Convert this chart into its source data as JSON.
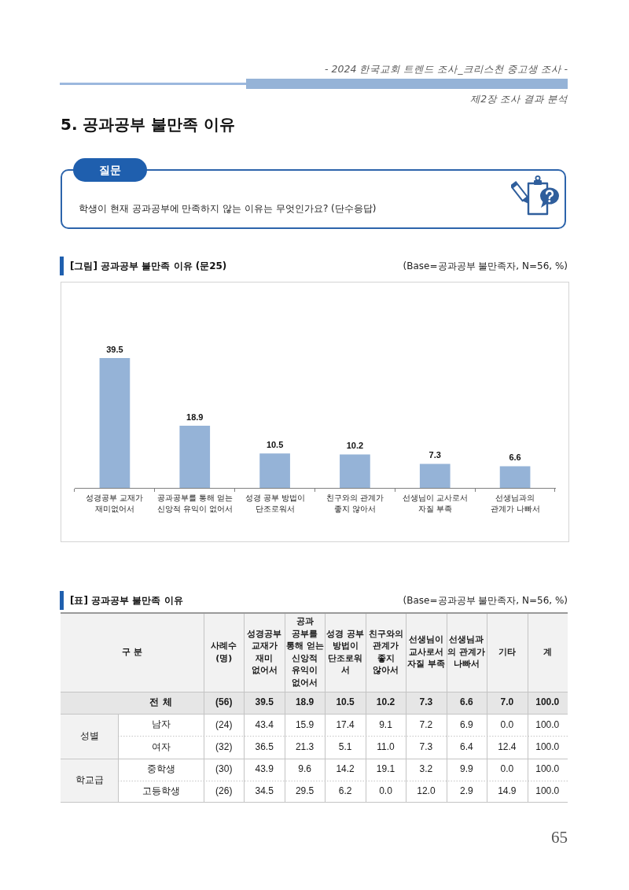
{
  "chart_data": [
    {
      "type": "other",
      "title": "5. 공과공부 불만족 이유",
      "annotations": [
        "- 2024 한국교회 트렌드 조사_크리스천 중고생 조사 -",
        "제2장 조사 결과 분석",
        "질문",
        "학생이 현재 공과공부에 만족하지 않는 이유는 무엇인가요? (단수응답)",
        "65"
      ]
    },
    {
      "type": "bar",
      "title": "[그림] 공과공부 불만족 이유 (문25)",
      "subtitle": "(Base=공과공부 불만족자, N=56, %)",
      "categories": [
        "성경공부 교재가 재미없어서",
        "공과공부를 통해 얻는 신앙적 유익이 없어서",
        "성경 공부 방법이 단조로워서",
        "친구와의 관계가 좋지 않아서",
        "선생님이 교사로서 자질 부족",
        "선생님과의 관계가 나빠서"
      ],
      "values": [
        39.5,
        18.9,
        10.5,
        10.2,
        7.3,
        6.6
      ],
      "color": "#95b3d7",
      "data_labels": true
    },
    {
      "type": "heatmap",
      "title": "[표] 공과공부 불만족 이유",
      "subtitle": "(Base=공과공부 불만족자, N=56, %)",
      "ylabel": "구 분",
      "categories": [
        "사례수 (명)",
        "성경공부 교재가 재미 없어서",
        "공과 공부를 통해 얻는 신앙적 유익이 없어서",
        "성경 공부 방법이 단조로워서",
        "친구와의 관계가 좋지 않아서",
        "선생님이 교사로서 자질 부족",
        "선생님과의 관계가 나빠서",
        "기타",
        "계"
      ],
      "y_categories": [
        "전 체",
        "남자",
        "여자",
        "중학생",
        "고등학생"
      ],
      "cells": [
        [
          56,
          39.5,
          18.9,
          10.5,
          10.2,
          7.3,
          6.6,
          7.0,
          100.0
        ],
        [
          24,
          43.4,
          15.9,
          17.4,
          9.1,
          7.2,
          6.9,
          0.0,
          100.0
        ],
        [
          32,
          36.5,
          21.3,
          5.1,
          11.0,
          7.3,
          6.4,
          12.4,
          100.0
        ],
        [
          30,
          43.9,
          9.6,
          14.2,
          19.1,
          3.2,
          9.9,
          0.0,
          100.0
        ],
        [
          26,
          34.5,
          29.5,
          6.2,
          0.0,
          12.0,
          2.9,
          14.9,
          100.0
        ]
      ],
      "cell_labels": [
        [
          "(56)",
          "39.5",
          "18.9",
          "10.5",
          "10.2",
          "7.3",
          "6.6",
          "7.0",
          "100.0"
        ],
        [
          "(24)",
          "43.4",
          "15.9",
          "17.4",
          "9.1",
          "7.2",
          "6.9",
          "0.0",
          "100.0"
        ],
        [
          "(32)",
          "36.5",
          "21.3",
          "5.1",
          "11.0",
          "7.3",
          "6.4",
          "12.4",
          "100.0"
        ],
        [
          "(30)",
          "43.9",
          "9.6",
          "14.2",
          "19.1",
          "3.2",
          "9.9",
          "0.0",
          "100.0"
        ],
        [
          "(26)",
          "34.5",
          "29.5",
          "6.2",
          "0.0",
          "12.0",
          "2.9",
          "14.9",
          "100.0"
        ]
      ],
      "annotations": [
        "성별",
        "학교급"
      ]
    }
  ]
}
